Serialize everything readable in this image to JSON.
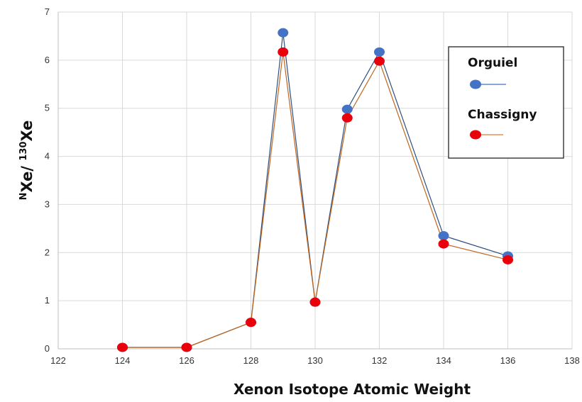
{
  "chart_data": {
    "type": "line",
    "xlabel": "Xenon Isotope Atomic Weight",
    "ylabel": {
      "sup1": "N",
      "base1": "Xe/ ",
      "sup2": "130",
      "base2": "Xe"
    },
    "xlim": [
      122,
      138
    ],
    "ylim": [
      0,
      7
    ],
    "x_ticks": [
      122,
      124,
      126,
      128,
      130,
      132,
      134,
      136,
      138
    ],
    "y_ticks": [
      0,
      1,
      2,
      3,
      4,
      5,
      6,
      7
    ],
    "grid": true,
    "legend_placement": "top-right",
    "x": [
      124,
      126,
      128,
      129,
      130,
      131,
      132,
      134,
      136
    ],
    "series": [
      {
        "name": "Orguiel",
        "values": [
          0.03,
          0.03,
          0.55,
          6.57,
          0.97,
          4.98,
          6.17,
          2.35,
          1.93
        ],
        "color": "#4472C4",
        "line_color": "#2F4F7F"
      },
      {
        "name": "Chassigny",
        "values": [
          0.03,
          0.03,
          0.55,
          6.17,
          0.97,
          4.8,
          5.98,
          2.18,
          1.85
        ],
        "color": "#E8000B",
        "line_color": "#C0661C"
      }
    ]
  }
}
